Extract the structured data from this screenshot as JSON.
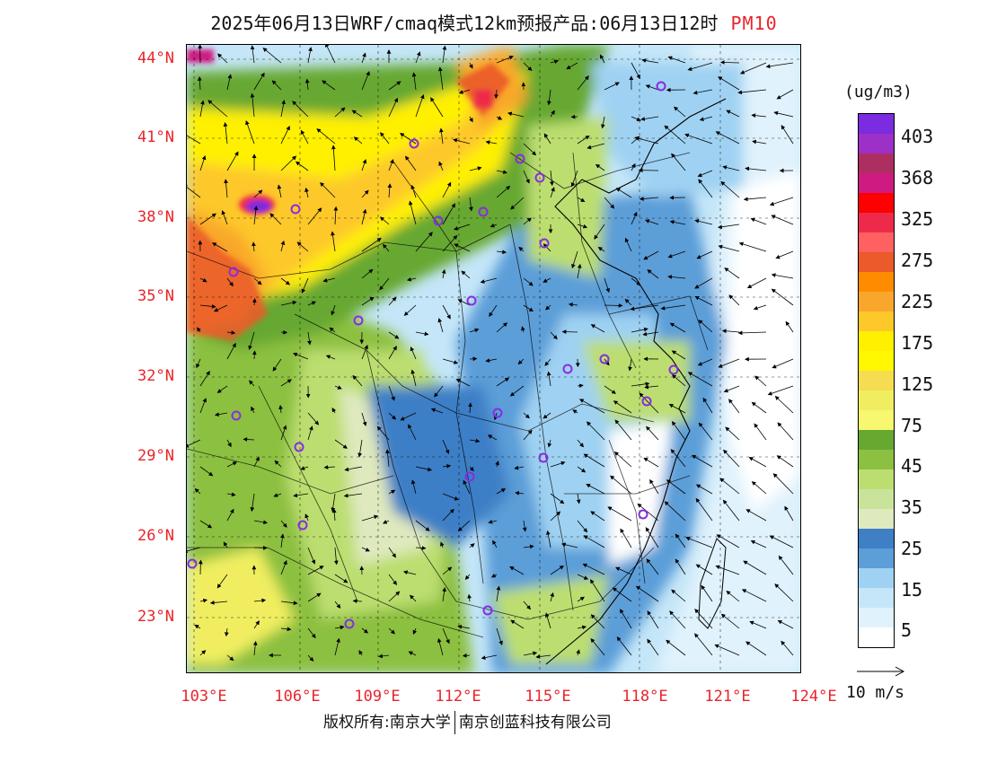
{
  "title": {
    "main": "2025年06月13日WRF/cmaq模式12km预报产品:06月13日12时",
    "variable": "PM10"
  },
  "axes": {
    "lat_labels": [
      "44°N",
      "41°N",
      "38°N",
      "35°N",
      "32°N",
      "29°N",
      "26°N",
      "23°N"
    ],
    "lon_labels": [
      "103°E",
      "106°E",
      "109°E",
      "112°E",
      "115°E",
      "118°E",
      "121°E",
      "124°E"
    ]
  },
  "colorbar": {
    "unit": "(ug/m3)",
    "labels": [
      "403",
      "368",
      "325",
      "275",
      "225",
      "175",
      "125",
      "75",
      "45",
      "35",
      "25",
      "15",
      "5"
    ],
    "colors": [
      "#7b2be0",
      "#9d30c6",
      "#ad2f62",
      "#cf1a82",
      "#ff0000",
      "#ee2a4a",
      "#ff6060",
      "#ea5a2a",
      "#ff8c00",
      "#f9a72c",
      "#fdc82a",
      "#fff000",
      "#fff800",
      "#f5dc50",
      "#f0ee60",
      "#f7f770",
      "#66a830",
      "#8cc040",
      "#bcde70",
      "#c9e39a",
      "#dfe9be",
      "#3e7fc6",
      "#5c9ed8",
      "#9fd2f2",
      "#c4e6f8",
      "#e0f2fc",
      "#ffffff"
    ]
  },
  "wind_reference": {
    "label": "10 m/s"
  },
  "copyright": {
    "left": "版权所有:南京大学",
    "right": "南京创蓝科技有限公司"
  }
}
